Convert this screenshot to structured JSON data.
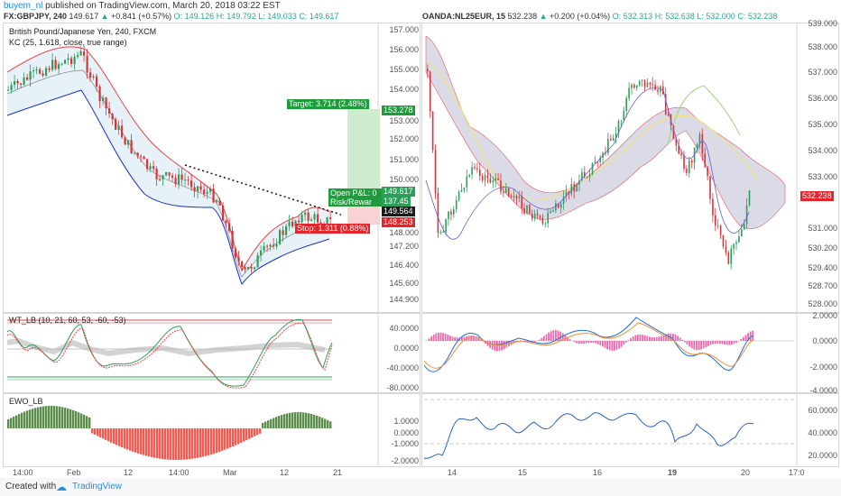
{
  "header": {
    "author": "buyem_nl",
    "published": "published on TradingView.com, March 20, 2018 03:22 EST"
  },
  "left_chart": {
    "symbol": "FX:GBPJPY, 240",
    "last": "149.617",
    "change": "+0.841 (+0.57%)",
    "o": "O: 149.126",
    "h": "H: 149.792",
    "l": "L: 149.033",
    "c": "C: 149.617",
    "title": "British Pound/Japanese Yen, 240, FXCM",
    "indicator": "KC (25, 1.618, close, true range)",
    "price_ticks": [
      "157.000",
      "156.000",
      "155.000",
      "154.000",
      "153.000",
      "152.000",
      "151.000",
      "150.000",
      "149.617",
      "148.000",
      "147.200",
      "146.400",
      "145.600",
      "144.900"
    ],
    "target_label": "Target: 3.714 (2.48%)",
    "target_price": "153.278",
    "open_pl_label": "Open P&L: 0",
    "risk_label": "Risk/Rewar",
    "open_price": "149.617",
    "mid_price": "137.45",
    "entry_price": "149.564",
    "stop_label": "Stop: 1.311 (0.88%)",
    "stop_price": "148.253",
    "wt_label": "WT_LB (10, 21, 60, 53, -60, -53)",
    "wt_ticks": [
      "40.0000",
      "0.0000",
      "-40.0000",
      "-80.0000"
    ],
    "ewo_label": "EWO_LB",
    "ewo_ticks": [
      "1.0000",
      "0.0000",
      "-1.0000",
      "-2.0000"
    ],
    "x_ticks": [
      "14:00",
      "Feb",
      "12",
      "14:00",
      "Mar",
      "12",
      "21"
    ]
  },
  "right_chart": {
    "symbol": "OANDA:NL25EUR, 15",
    "last": "532.238",
    "change": "+0.200 (+0.04%)",
    "o": "O: 532.313",
    "h": "H: 532.638",
    "l": "L: 532.000",
    "c": "C: 532.238",
    "price_ticks": [
      "539.000",
      "538.000",
      "537.000",
      "536.000",
      "535.000",
      "534.000",
      "533.000",
      "532.238",
      "531.000",
      "530.200",
      "529.400",
      "528.700",
      "528.000"
    ],
    "osc_ticks": [
      "2.0000",
      "0.0000",
      "-2.0000",
      "-4.0000"
    ],
    "rsi_ticks": [
      "60.0000",
      "40.0000",
      "20.0000"
    ],
    "x_ticks": [
      "14",
      "15",
      "16",
      "19",
      "20",
      "17:0"
    ]
  },
  "footer": {
    "created_with": "Created with",
    "brand": "TradingView"
  },
  "colors": {
    "up": "#2e9e5a",
    "down": "#d9343a",
    "kc_upper": "#e5474b",
    "kc_lower": "#1a2fd1",
    "green_box": "#1e9b3a",
    "red_box": "#e8242b"
  }
}
